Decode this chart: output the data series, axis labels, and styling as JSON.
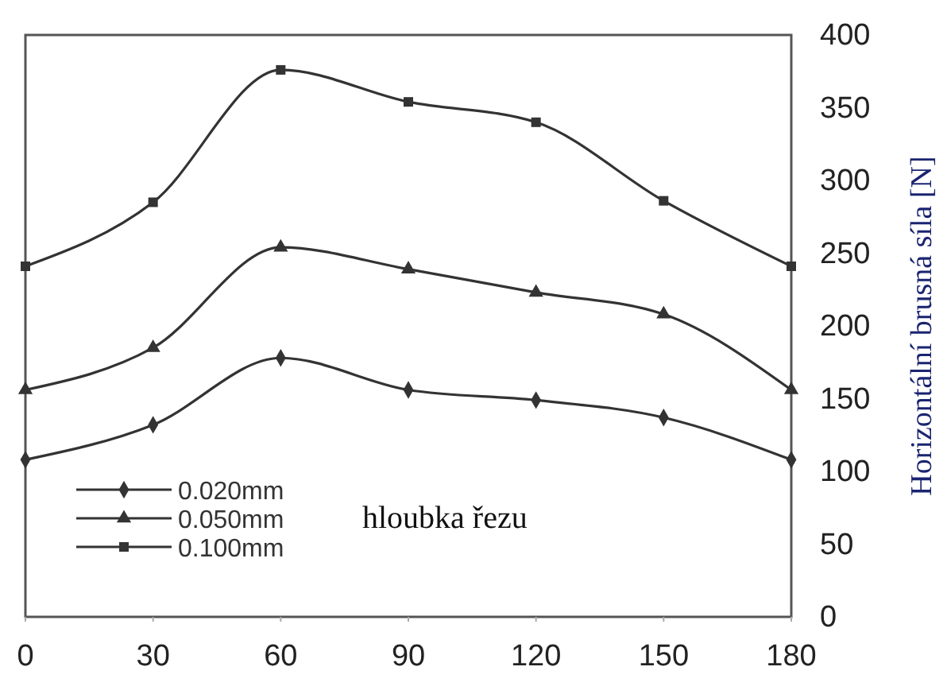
{
  "chart_data": {
    "type": "line",
    "x": [
      0,
      30,
      60,
      90,
      120,
      150,
      180
    ],
    "xlim": [
      0,
      180
    ],
    "xticks": [
      0,
      30,
      60,
      90,
      120,
      150,
      180
    ],
    "ylim": [
      0,
      400
    ],
    "yticks": [
      0,
      50,
      100,
      150,
      200,
      250,
      300,
      350,
      400
    ],
    "ylabel": "Horizontální brusná síla [N]",
    "legend_title": "hloubka řezu",
    "legend": "bottom left",
    "grid": false,
    "line_style": "solid",
    "series": [
      {
        "name": "0.020mm",
        "color": "#333333",
        "marker": "diamond",
        "values": [
          108,
          132,
          178,
          156,
          149,
          137,
          108
        ]
      },
      {
        "name": "0.050mm",
        "color": "#333333",
        "marker": "triangle",
        "values": [
          156,
          185,
          254,
          239,
          223,
          208,
          156
        ]
      },
      {
        "name": "0.100mm",
        "color": "#333333",
        "marker": "square",
        "values": [
          241,
          285,
          376,
          354,
          340,
          286,
          241
        ]
      }
    ]
  }
}
